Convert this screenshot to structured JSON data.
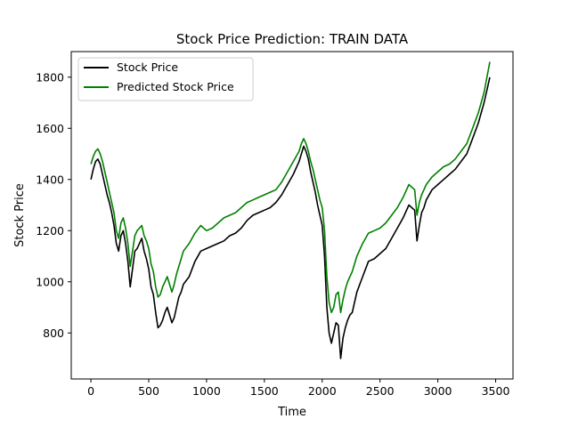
{
  "chart_data": {
    "type": "line",
    "title": "Stock Price Prediction: TRAIN DATA",
    "xlabel": "Time",
    "ylabel": "Stock Price",
    "xlim": [
      -170,
      3650
    ],
    "ylim": [
      620,
      1900
    ],
    "xticks": [
      "0",
      "500",
      "1000",
      "1500",
      "2000",
      "2500",
      "3000",
      "3500"
    ],
    "xtick_values": [
      0,
      500,
      1000,
      1500,
      2000,
      2500,
      3000,
      3500
    ],
    "yticks": [
      "800",
      "1000",
      "1200",
      "1400",
      "1600",
      "1800"
    ],
    "ytick_values": [
      800,
      1000,
      1200,
      1400,
      1600,
      1800
    ],
    "grid": false,
    "legend_position": "upper-left",
    "colors": {
      "actual": "#000000",
      "predicted": "#008000"
    },
    "series": [
      {
        "name": "Stock Price",
        "color": "#000000",
        "x": [
          0,
          20,
          40,
          60,
          80,
          100,
          120,
          140,
          160,
          180,
          200,
          220,
          240,
          260,
          280,
          300,
          320,
          340,
          360,
          380,
          400,
          420,
          440,
          460,
          480,
          500,
          520,
          540,
          560,
          580,
          600,
          620,
          640,
          660,
          680,
          700,
          720,
          740,
          760,
          780,
          800,
          850,
          900,
          950,
          1000,
          1050,
          1100,
          1150,
          1200,
          1250,
          1300,
          1350,
          1400,
          1450,
          1500,
          1550,
          1600,
          1650,
          1700,
          1750,
          1800,
          1820,
          1840,
          1860,
          1880,
          1900,
          1920,
          1940,
          1960,
          1980,
          2000,
          2020,
          2040,
          2060,
          2080,
          2100,
          2120,
          2140,
          2160,
          2180,
          2200,
          2220,
          2240,
          2260,
          2280,
          2300,
          2350,
          2400,
          2450,
          2500,
          2550,
          2600,
          2650,
          2700,
          2750,
          2800,
          2820,
          2840,
          2860,
          2880,
          2900,
          2950,
          3000,
          3050,
          3100,
          3150,
          3200,
          3250,
          3300,
          3350,
          3400,
          3450
        ],
        "values": [
          1400,
          1440,
          1470,
          1480,
          1460,
          1420,
          1380,
          1340,
          1310,
          1270,
          1220,
          1150,
          1120,
          1180,
          1200,
          1150,
          1080,
          980,
          1050,
          1120,
          1130,
          1150,
          1170,
          1120,
          1090,
          1050,
          980,
          950,
          880,
          820,
          830,
          850,
          880,
          900,
          870,
          840,
          860,
          900,
          940,
          960,
          990,
          1020,
          1080,
          1120,
          1130,
          1140,
          1150,
          1160,
          1180,
          1190,
          1210,
          1240,
          1260,
          1270,
          1280,
          1290,
          1310,
          1340,
          1380,
          1420,
          1470,
          1500,
          1530,
          1510,
          1480,
          1430,
          1390,
          1350,
          1300,
          1260,
          1220,
          1100,
          900,
          800,
          760,
          800,
          840,
          830,
          700,
          780,
          820,
          850,
          870,
          880,
          920,
          960,
          1020,
          1080,
          1090,
          1110,
          1130,
          1170,
          1210,
          1250,
          1300,
          1280,
          1160,
          1220,
          1270,
          1290,
          1320,
          1360,
          1380,
          1400,
          1420,
          1440,
          1470,
          1500,
          1560,
          1620,
          1700,
          1800
        ]
      },
      {
        "name": "Predicted Stock Price",
        "color": "#008000",
        "x": [
          0,
          20,
          40,
          60,
          80,
          100,
          120,
          140,
          160,
          180,
          200,
          220,
          240,
          260,
          280,
          300,
          320,
          340,
          360,
          380,
          400,
          420,
          440,
          460,
          480,
          500,
          520,
          540,
          560,
          580,
          600,
          620,
          640,
          660,
          680,
          700,
          720,
          740,
          760,
          780,
          800,
          850,
          900,
          950,
          1000,
          1050,
          1100,
          1150,
          1200,
          1250,
          1300,
          1350,
          1400,
          1450,
          1500,
          1550,
          1600,
          1650,
          1700,
          1750,
          1800,
          1820,
          1840,
          1860,
          1880,
          1900,
          1920,
          1940,
          1960,
          1980,
          2000,
          2020,
          2040,
          2060,
          2080,
          2100,
          2120,
          2140,
          2160,
          2180,
          2200,
          2220,
          2240,
          2260,
          2280,
          2300,
          2350,
          2400,
          2450,
          2500,
          2550,
          2600,
          2650,
          2700,
          2750,
          2800,
          2820,
          2840,
          2860,
          2880,
          2900,
          2950,
          3000,
          3050,
          3100,
          3150,
          3200,
          3250,
          3300,
          3350,
          3400,
          3450
        ],
        "values": [
          1460,
          1490,
          1510,
          1520,
          1500,
          1470,
          1430,
          1390,
          1350,
          1310,
          1270,
          1200,
          1170,
          1230,
          1250,
          1210,
          1150,
          1060,
          1120,
          1180,
          1200,
          1210,
          1220,
          1180,
          1160,
          1130,
          1070,
          1040,
          980,
          940,
          950,
          980,
          1000,
          1020,
          990,
          960,
          990,
          1030,
          1060,
          1090,
          1120,
          1150,
          1190,
          1220,
          1200,
          1210,
          1230,
          1250,
          1260,
          1270,
          1290,
          1310,
          1320,
          1330,
          1340,
          1350,
          1360,
          1390,
          1430,
          1470,
          1510,
          1540,
          1560,
          1540,
          1510,
          1470,
          1440,
          1400,
          1360,
          1320,
          1290,
          1200,
          1020,
          920,
          880,
          900,
          950,
          960,
          880,
          930,
          970,
          1000,
          1020,
          1040,
          1070,
          1100,
          1150,
          1190,
          1200,
          1210,
          1230,
          1260,
          1290,
          1330,
          1380,
          1360,
          1260,
          1310,
          1340,
          1360,
          1380,
          1410,
          1430,
          1450,
          1460,
          1480,
          1510,
          1540,
          1600,
          1660,
          1740,
          1860
        ]
      }
    ]
  }
}
